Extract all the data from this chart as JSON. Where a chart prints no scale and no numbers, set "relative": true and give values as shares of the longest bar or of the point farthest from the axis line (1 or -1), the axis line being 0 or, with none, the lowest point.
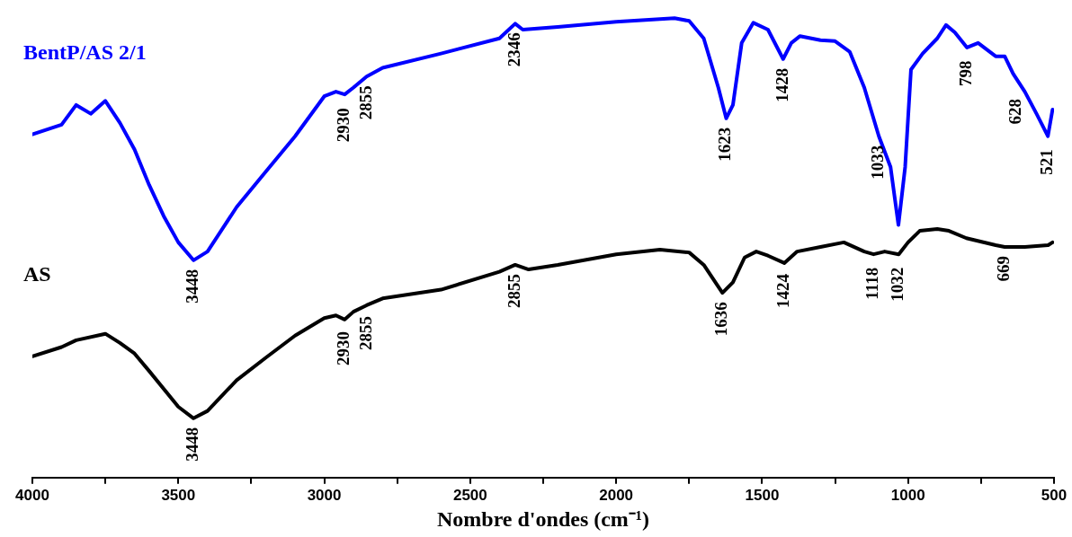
{
  "chart_data": {
    "type": "line",
    "xlabel": "Nombre d'ondes (cm⁻¹)",
    "relative": true,
    "legend": false,
    "grid": false,
    "marker": "none",
    "line_style": "solid",
    "xlim": [
      4000,
      500
    ],
    "xticks": [
      4000,
      {
        "value": 3750,
        "label": null
      },
      3500,
      {
        "value": 3250,
        "label": null
      },
      3000,
      {
        "value": 2750,
        "label": null
      },
      2500,
      {
        "value": 2250,
        "label": null
      },
      2000,
      {
        "value": 1750,
        "label": null
      },
      1500,
      {
        "value": 1250,
        "label": null
      },
      1000,
      {
        "value": 750,
        "label": null
      },
      500
    ],
    "series": [
      {
        "name": "BentP/AS 2/1",
        "color": "#0000ff",
        "x": [
          4000,
          3900,
          3850,
          3800,
          3750,
          3700,
          3650,
          3600,
          3550,
          3500,
          3448,
          3400,
          3300,
          3200,
          3100,
          3000,
          2960,
          2930,
          2900,
          2855,
          2800,
          2600,
          2400,
          2346,
          2320,
          2200,
          2000,
          1850,
          1800,
          1750,
          1700,
          1650,
          1623,
          1600,
          1570,
          1530,
          1480,
          1428,
          1400,
          1370,
          1300,
          1250,
          1200,
          1150,
          1100,
          1060,
          1033,
          1010,
          990,
          950,
          900,
          870,
          840,
          798,
          760,
          700,
          669,
          640,
          600,
          560,
          521,
          505
        ],
        "values": [
          0.747,
          0.768,
          0.811,
          0.792,
          0.82,
          0.772,
          0.714,
          0.637,
          0.569,
          0.512,
          0.473,
          0.492,
          0.589,
          0.666,
          0.743,
          0.83,
          0.84,
          0.834,
          0.849,
          0.873,
          0.892,
          0.923,
          0.956,
          0.988,
          0.975,
          0.981,
          0.992,
          0.998,
          1.0,
          0.994,
          0.956,
          0.849,
          0.782,
          0.811,
          0.946,
          0.99,
          0.975,
          0.911,
          0.946,
          0.961,
          0.952,
          0.95,
          0.927,
          0.849,
          0.743,
          0.676,
          0.55,
          0.676,
          0.888,
          0.923,
          0.956,
          0.985,
          0.969,
          0.936,
          0.946,
          0.917,
          0.917,
          0.879,
          0.84,
          0.792,
          0.743,
          0.801
        ]
      },
      {
        "name": "AS",
        "color": "#000000",
        "x": [
          4000,
          3900,
          3850,
          3750,
          3700,
          3650,
          3600,
          3500,
          3448,
          3400,
          3300,
          3200,
          3100,
          3000,
          2960,
          2930,
          2900,
          2855,
          2800,
          2600,
          2400,
          2346,
          2300,
          2200,
          2000,
          1850,
          1750,
          1700,
          1636,
          1600,
          1560,
          1520,
          1480,
          1424,
          1380,
          1300,
          1220,
          1150,
          1118,
          1080,
          1032,
          1000,
          960,
          900,
          860,
          800,
          700,
          669,
          600,
          520,
          505
        ],
        "values": [
          0.264,
          0.284,
          0.299,
          0.313,
          0.293,
          0.27,
          0.232,
          0.154,
          0.129,
          0.145,
          0.212,
          0.261,
          0.309,
          0.347,
          0.353,
          0.344,
          0.361,
          0.375,
          0.39,
          0.409,
          0.448,
          0.463,
          0.453,
          0.463,
          0.486,
          0.496,
          0.49,
          0.463,
          0.402,
          0.425,
          0.479,
          0.492,
          0.483,
          0.467,
          0.492,
          0.502,
          0.512,
          0.492,
          0.486,
          0.492,
          0.486,
          0.512,
          0.537,
          0.541,
          0.537,
          0.521,
          0.506,
          0.502,
          0.502,
          0.506,
          0.512
        ]
      }
    ],
    "annotations": [
      {
        "text": "3448",
        "x": 3448,
        "y": 0.473
      },
      {
        "text": "2930",
        "x": 2930,
        "y": 0.824
      },
      {
        "text": "2855",
        "x": 2855,
        "y": 0.873
      },
      {
        "text": "2346",
        "x": 2346,
        "y": 0.988
      },
      {
        "text": "1623",
        "x": 1623,
        "y": 0.782
      },
      {
        "text": "1428",
        "x": 1428,
        "y": 0.911
      },
      {
        "text": "1033",
        "x": 1100,
        "y": 0.743
      },
      {
        "text": "798",
        "x": 798,
        "y": 0.927
      },
      {
        "text": "628",
        "x": 628,
        "y": 0.844
      },
      {
        "text": "521",
        "x": 521,
        "y": 0.734
      },
      {
        "text": "3448",
        "x": 3448,
        "y": 0.129
      },
      {
        "text": "2930",
        "x": 2930,
        "y": 0.338
      },
      {
        "text": "2855",
        "x": 2855,
        "y": 0.371
      },
      {
        "text": "2855",
        "x": 2346,
        "y": 0.463
      },
      {
        "text": "1636",
        "x": 1636,
        "y": 0.402
      },
      {
        "text": "1424",
        "x": 1424,
        "y": 0.463
      },
      {
        "text": "1118",
        "x": 1118,
        "y": 0.477
      },
      {
        "text": "1032",
        "x": 1032,
        "y": 0.477
      },
      {
        "text": "669",
        "x": 669,
        "y": 0.502
      }
    ]
  }
}
